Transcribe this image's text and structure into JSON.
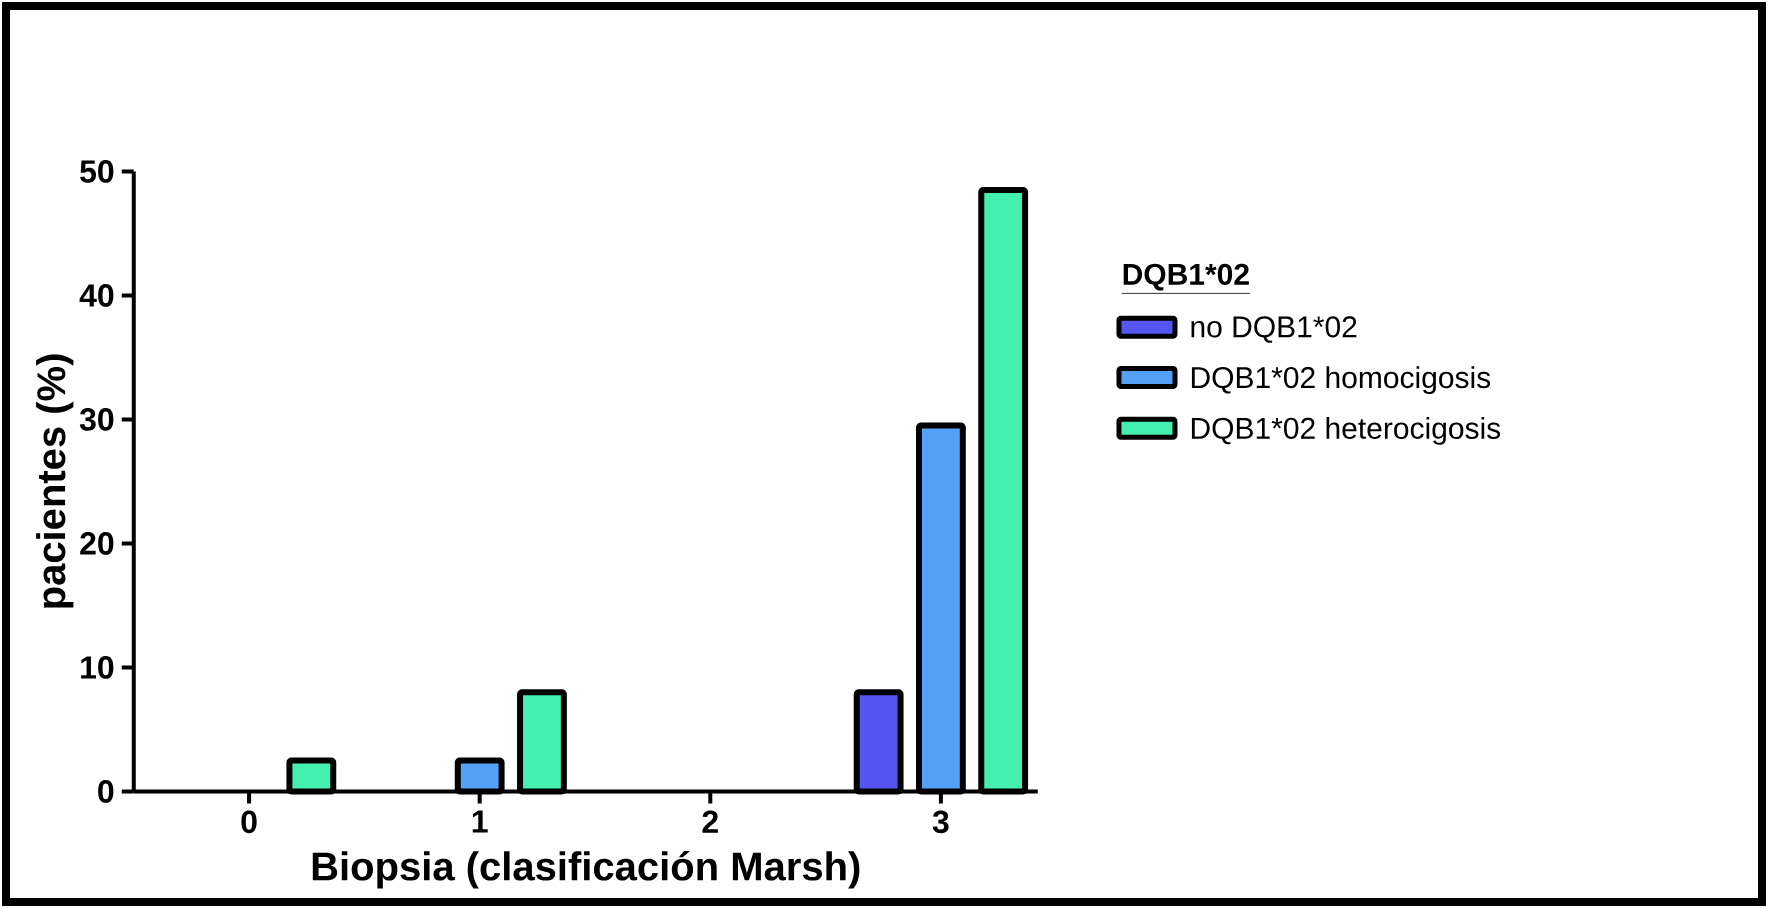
{
  "chart_data": {
    "type": "bar",
    "xlabel": "Biopsia (clasificación Marsh)",
    "ylabel": "pacientes (%)",
    "legend_title": "DQB1*02",
    "categories": [
      "0",
      "1",
      "2",
      "3"
    ],
    "series": [
      {
        "name": "no DQB1*02",
        "color": "#5555f2",
        "values": [
          null,
          null,
          null,
          8
        ]
      },
      {
        "name": "DQB1*02 homocigosis",
        "color": "#55a0f7",
        "values": [
          null,
          2.5,
          null,
          29.5
        ]
      },
      {
        "name": "DQB1*02 heterocigosis",
        "color": "#45efb0",
        "values": [
          2.5,
          8,
          null,
          48.5
        ]
      }
    ],
    "ylim": [
      0,
      50
    ],
    "yticks": [
      0,
      10,
      20,
      30,
      40,
      50
    ],
    "legend": "right",
    "grid": false
  }
}
